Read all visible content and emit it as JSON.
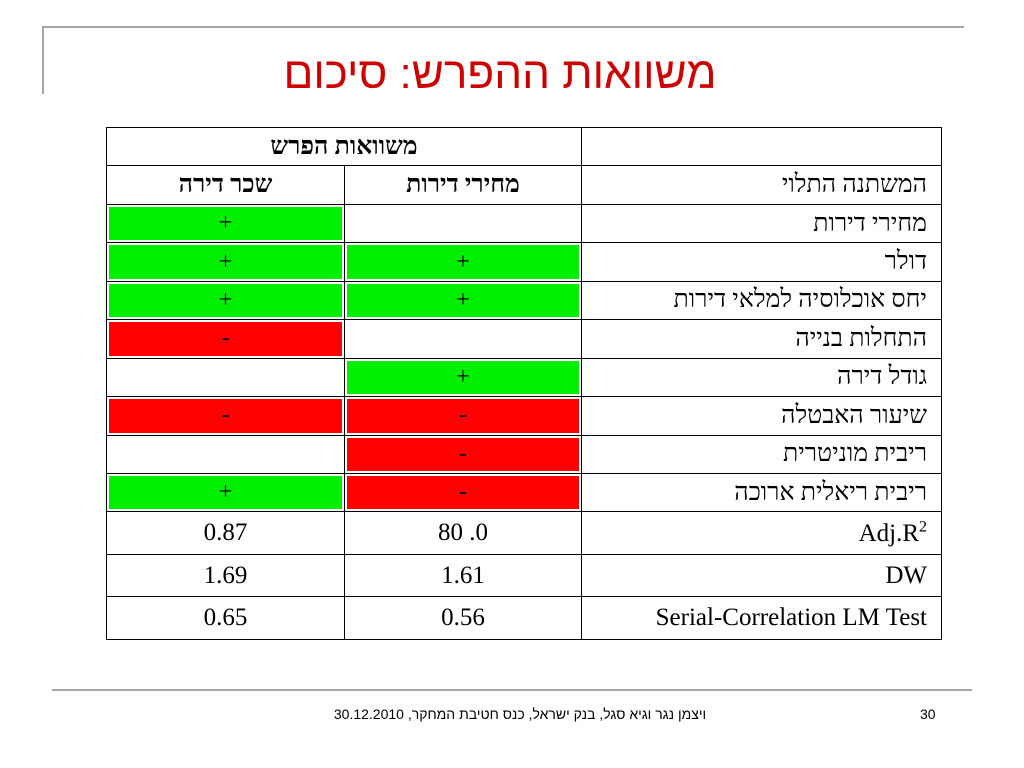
{
  "slide": {
    "title": "משוואות ההפרש: סיכום",
    "footer": "ויצמן נגר וגיא סגל, בנק ישראל, כנס חטיבת המחקר, 30.12.2010",
    "page_number": "30"
  },
  "colors": {
    "positive": "#00ee00",
    "negative": "#ff0000",
    "title": "#cc0000"
  },
  "table": {
    "group_header": "משוואות הפרש",
    "dep_label": "המשתנה התלוי",
    "col1_header": "מחירי דירות",
    "col2_header": "שכר דירה",
    "rows": [
      {
        "label": "מחירי דירות",
        "c1": "",
        "c1_color": "none",
        "c2": "+",
        "c2_color": "positive"
      },
      {
        "label": "דולר",
        "c1": "+",
        "c1_color": "positive",
        "c2": "+",
        "c2_color": "positive"
      },
      {
        "label": "יחס אוכלוסיה למלאי דירות",
        "c1": "+",
        "c1_color": "positive",
        "c2": "+",
        "c2_color": "positive"
      },
      {
        "label": "התחלות בנייה",
        "c1": "",
        "c1_color": "none",
        "c2": "-",
        "c2_color": "negative"
      },
      {
        "label": "גודל דירה",
        "c1": "+",
        "c1_color": "positive",
        "c2": "",
        "c2_color": "none"
      },
      {
        "label": "שיעור האבטלה",
        "c1": "-",
        "c1_color": "negative",
        "c2": "-",
        "c2_color": "negative"
      },
      {
        "label": "ריבית מוניטרית",
        "c1": "-",
        "c1_color": "negative",
        "c2": "",
        "c2_color": "none"
      },
      {
        "label": "ריבית ריאלית ארוכה",
        "c1": "-",
        "c1_color": "negative",
        "c2": "+",
        "c2_color": "positive"
      }
    ],
    "stats": [
      {
        "label": "Adj.R",
        "sup": "2",
        "c1": "0. 80",
        "c2": "0.87"
      },
      {
        "label": "DW",
        "sup": "",
        "c1": "1.61",
        "c2": "1.69"
      },
      {
        "label": "Serial-Correlation LM Test",
        "sup": "",
        "c1": "0.56",
        "c2": "0.65"
      }
    ]
  }
}
